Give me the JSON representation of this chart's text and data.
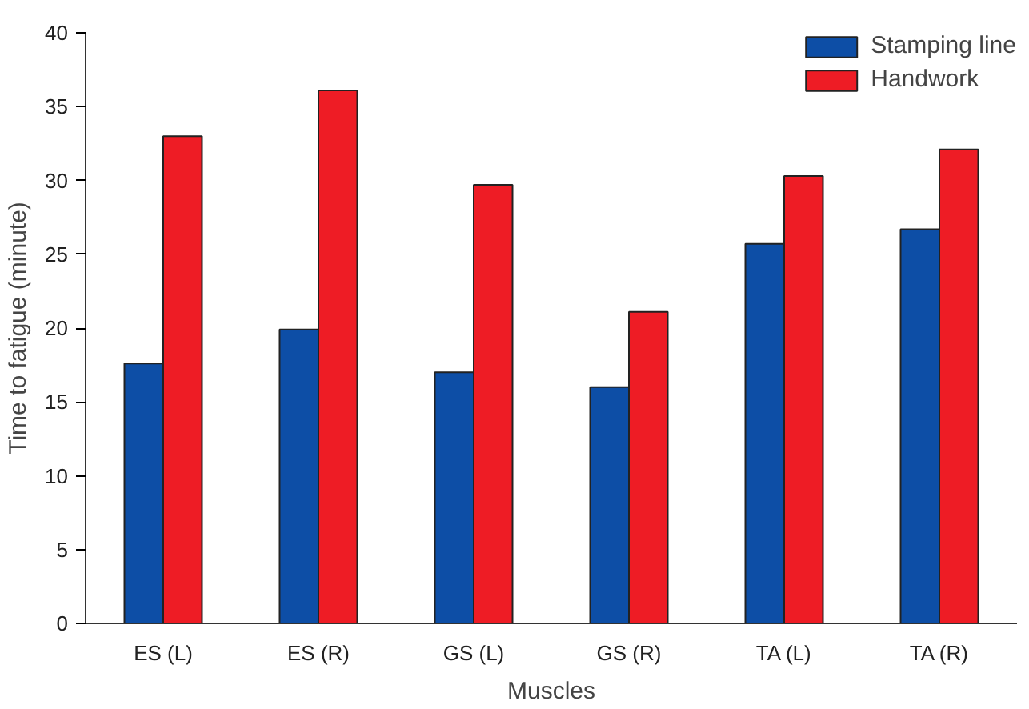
{
  "chart_data": {
    "type": "bar",
    "xlabel": "Muscles",
    "ylabel": "Time to fatigue (minute)",
    "categories": [
      "ES (L)",
      "ES (R)",
      "GS (L)",
      "GS (R)",
      "TA (L)",
      "TA (R)"
    ],
    "series": [
      {
        "name": "Stamping line",
        "color": "#0d4ea6",
        "values": [
          17.6,
          19.9,
          17.0,
          16.0,
          25.7,
          26.7
        ]
      },
      {
        "name": "Handwork",
        "color": "#ee1c25",
        "values": [
          33.0,
          36.1,
          29.7,
          21.1,
          30.3,
          32.1
        ]
      }
    ],
    "ylim": [
      0,
      40
    ],
    "yticks": [
      0,
      5,
      10,
      15,
      20,
      25,
      30,
      35,
      40
    ],
    "grid": false,
    "legend": "top right"
  }
}
